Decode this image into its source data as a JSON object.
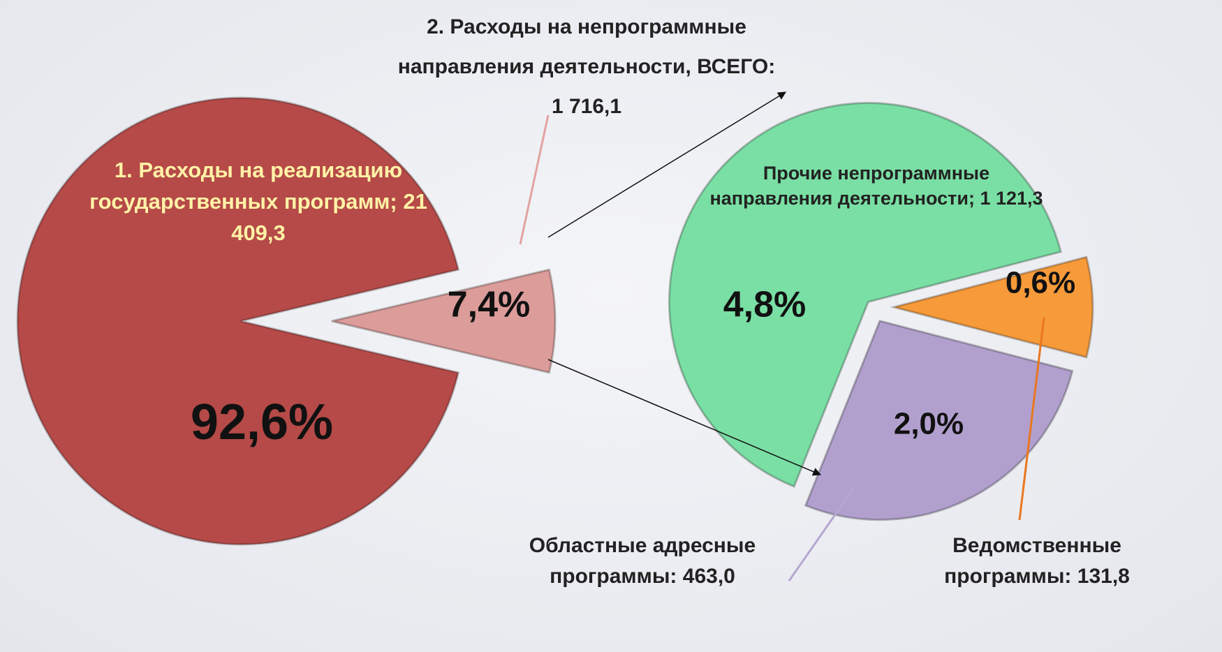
{
  "chart_data": [
    {
      "type": "pie",
      "categories": [
        "1. Расходы на реализацию государственных программ; 21 409,3",
        "2. Расходы на непрограммные направления деятельности, ВСЕГО: 1 716,1"
      ],
      "values": [
        92.6,
        7.4
      ],
      "value_labels": [
        "92,6%",
        "7,4%"
      ],
      "colors": [
        "#b54a48",
        "#dc9c9a"
      ]
    },
    {
      "type": "pie",
      "categories": [
        "Прочие непрограммные направления деятельности; 1 121,3",
        "Областные адресные программы: 463,0",
        "Ведомственные программы: 131,8"
      ],
      "values": [
        4.8,
        2.0,
        0.6
      ],
      "value_labels": [
        "4,8%",
        "2,0%",
        "0,6%"
      ],
      "colors": [
        "#7adfa4",
        "#b1a0cd",
        "#f69a3a"
      ]
    }
  ]
}
